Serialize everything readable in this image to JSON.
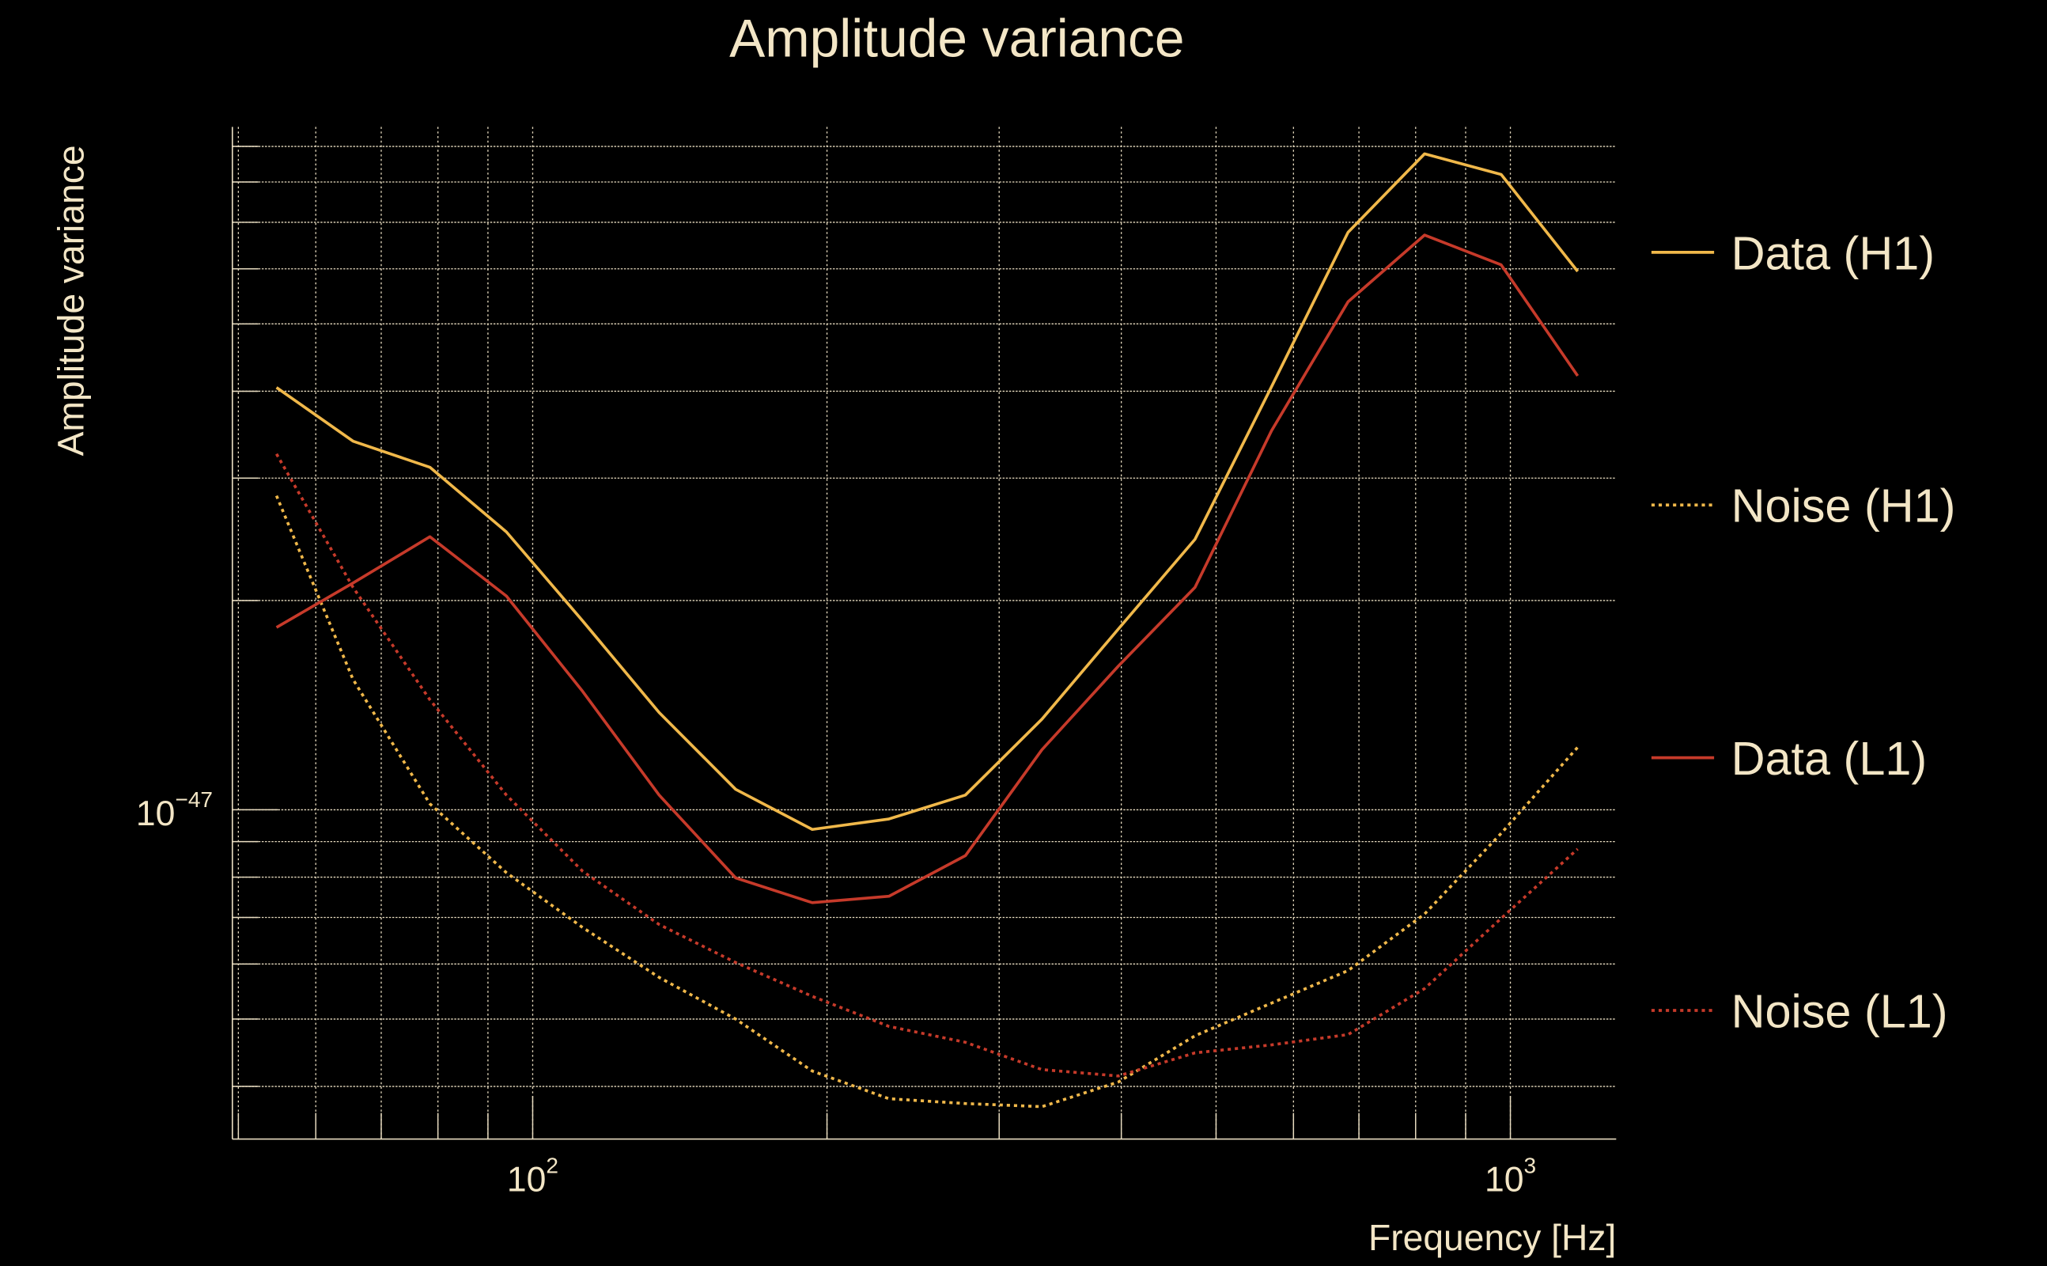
{
  "chart_data": {
    "type": "line",
    "title": "Amplitude variance",
    "xlabel": "Frequency [Hz]",
    "ylabel": "Amplitude variance",
    "xscale": "log",
    "yscale": "log",
    "xlim": [
      49.3,
      1283
    ],
    "ylim": [
      3.36e-48,
      9.6e-47
    ],
    "grid": true,
    "legend_position": "right",
    "x_ticks": [
      {
        "value": 100,
        "base": "10",
        "exp": "2"
      },
      {
        "value": 1000,
        "base": "10",
        "exp": "3"
      }
    ],
    "y_ticks": [
      {
        "value": 1e-47,
        "base": "10",
        "exp": "−47"
      }
    ],
    "x": [
      54.7,
      65.5,
      78.5,
      94.0,
      112.5,
      134.7,
      161.3,
      193.2,
      231.4,
      277.1,
      331.8,
      397.3,
      475.8,
      569.8,
      682.3,
      817.1,
      978.5,
      1171.8
    ],
    "series": [
      {
        "name": "Data (H1)",
        "color": "#f0b84a",
        "style": "solid",
        "values": [
          4.05e-47,
          3.39e-47,
          3.11e-47,
          2.51e-47,
          1.87e-47,
          1.38e-47,
          1.07e-47,
          9.37e-48,
          9.7e-48,
          1.05e-47,
          1.35e-47,
          1.82e-47,
          2.45e-47,
          4.06e-47,
          6.77e-47,
          8.78e-47,
          8.2e-47,
          5.95e-47
        ]
      },
      {
        "name": "Noise (H1)",
        "color": "#f0b84a",
        "style": "dotted",
        "values": [
          2.83e-47,
          1.54e-47,
          1.02e-47,
          8.12e-48,
          6.77e-48,
          5.74e-48,
          5e-48,
          4.21e-48,
          3.84e-48,
          3.78e-48,
          3.74e-48,
          4.06e-48,
          4.73e-48,
          5.27e-48,
          5.87e-48,
          7.08e-48,
          9.25e-48,
          1.23e-47
        ]
      },
      {
        "name": "Data (L1)",
        "color": "#c63a2a",
        "style": "solid",
        "values": [
          1.83e-47,
          2.12e-47,
          2.47e-47,
          2.03e-47,
          1.48e-47,
          1.05e-47,
          7.98e-48,
          7.35e-48,
          7.51e-48,
          8.59e-48,
          1.22e-47,
          1.61e-47,
          2.09e-47,
          3.51e-47,
          5.38e-47,
          6.71e-47,
          6.08e-47,
          4.21e-47
        ]
      },
      {
        "name": "Noise (L1)",
        "color": "#c63a2a",
        "style": "dotted",
        "values": [
          3.25e-47,
          2.09e-47,
          1.44e-47,
          1.05e-47,
          8.16e-48,
          6.84e-48,
          6.03e-48,
          5.39e-48,
          4.88e-48,
          4.63e-48,
          4.23e-48,
          4.14e-48,
          4.47e-48,
          4.59e-48,
          4.75e-48,
          5.53e-48,
          6.98e-48,
          8.78e-48
        ]
      }
    ]
  }
}
